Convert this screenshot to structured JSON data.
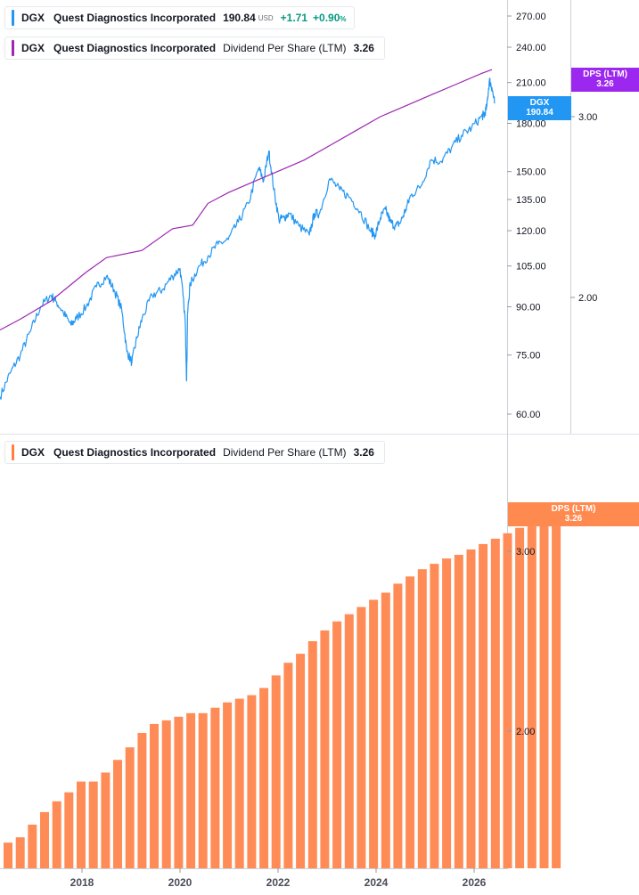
{
  "legends": {
    "price": {
      "ticker": "DGX",
      "name": "Quest Diagnostics Incorporated",
      "value": "190.84",
      "currency": "USD",
      "change": "+1.71",
      "change_pct": "+0.90",
      "pct_sign": "%",
      "color": "#2196f3"
    },
    "dps_top": {
      "ticker": "DGX",
      "name": "Quest Diagnostics Incorporated",
      "metric": "Dividend Per Share (LTM)",
      "value": "3.26",
      "color": "#9c27b0"
    },
    "dps_bottom": {
      "ticker": "DGX",
      "name": "Quest Diagnostics Incorporated",
      "metric": "Dividend Per Share (LTM)",
      "value": "3.26",
      "color": "#ff7f3f"
    }
  },
  "tags": {
    "price": {
      "label": "DGX",
      "value": "190.84",
      "color": "#2196f3"
    },
    "dps_top": {
      "label": "DPS (LTM)",
      "value": "3.26",
      "color": "#9c27ee"
    },
    "dps_bottom": {
      "label": "DPS (LTM)",
      "value": "3.26",
      "color": "#ff8a50"
    }
  },
  "chart_data": [
    {
      "type": "line",
      "title": "",
      "y_scale": "log",
      "ylim": [
        55,
        290
      ],
      "price_axis_ticks": [
        "270.00",
        "240.00",
        "210.00",
        "180.00",
        "150.00",
        "135.00",
        "120.00",
        "105.00",
        "90.00",
        "75.00",
        "60.00"
      ],
      "dps_axis_ticks": [
        "3.00",
        "2.00"
      ],
      "dps_axis_range": [
        1.9,
        3.4
      ],
      "x_range": [
        2016.5,
        2026.2
      ],
      "series": [
        {
          "name": "DGX",
          "color": "#2196f3",
          "x": [
            2016.5,
            2016.7,
            2016.9,
            2017.1,
            2017.3,
            2017.5,
            2017.6,
            2017.75,
            2017.9,
            2018.0,
            2018.2,
            2018.4,
            2018.6,
            2018.75,
            2018.9,
            2019.0,
            2019.1,
            2019.2,
            2019.3,
            2019.5,
            2019.7,
            2019.9,
            2020.05,
            2020.15,
            2020.18,
            2020.2,
            2020.25,
            2020.4,
            2020.6,
            2020.8,
            2021.0,
            2021.2,
            2021.4,
            2021.6,
            2021.7,
            2021.8,
            2021.9,
            2022.0,
            2022.1,
            2022.2,
            2022.4,
            2022.6,
            2022.7,
            2022.8,
            2023.0,
            2023.2,
            2023.4,
            2023.6,
            2023.8,
            2023.9,
            2024.0,
            2024.1,
            2024.2,
            2024.3,
            2024.4,
            2024.5,
            2024.6,
            2024.8,
            2025.0,
            2025.2,
            2025.4,
            2025.6,
            2025.8,
            2026.0,
            2026.05,
            2026.1,
            2026.15,
            2026.2,
            2026.25
          ],
          "values": [
            64,
            70,
            75,
            82,
            90,
            94,
            92,
            88,
            84,
            86,
            90,
            97,
            101,
            96,
            89,
            76,
            73,
            80,
            86,
            94,
            96,
            101,
            104,
            86,
            68,
            88,
            98,
            104,
            109,
            114,
            116,
            124,
            133,
            152,
            145,
            162,
            140,
            125,
            126,
            128,
            122,
            118,
            128,
            128,
            146,
            140,
            136,
            129,
            120,
            118,
            126,
            130,
            124,
            122,
            124,
            130,
            137,
            142,
            157,
            156,
            164,
            172,
            177,
            185,
            186,
            192,
            212,
            206,
            194
          ]
        },
        {
          "name": "DPS (LTM)",
          "color": "#9c27b0",
          "x": [
            2016.5,
            2016.9,
            2017.5,
            2018.2,
            2018.6,
            2019.3,
            2019.9,
            2020.3,
            2020.6,
            2021.0,
            2021.5,
            2022.0,
            2022.5,
            2023.0,
            2023.5,
            2024.0,
            2024.5,
            2025.0,
            2025.5,
            2026.0,
            2026.2
          ],
          "values": [
            1.82,
            1.88,
            1.98,
            2.14,
            2.22,
            2.26,
            2.38,
            2.4,
            2.52,
            2.58,
            2.64,
            2.7,
            2.76,
            2.84,
            2.92,
            3.0,
            3.06,
            3.12,
            3.18,
            3.24,
            3.26
          ]
        }
      ]
    },
    {
      "type": "bar",
      "title": "",
      "x_ticks": [
        "2018",
        "2020",
        "2022",
        "2024",
        "2026"
      ],
      "y_axis_ticks": [
        "3.00",
        "2.00"
      ],
      "ylim": [
        1.23,
        3.4
      ],
      "series": [
        {
          "name": "DPS (LTM)",
          "color": "#ff8c57",
          "values": [
            1.38,
            1.41,
            1.48,
            1.55,
            1.61,
            1.66,
            1.72,
            1.72,
            1.77,
            1.84,
            1.91,
            1.99,
            2.04,
            2.06,
            2.08,
            2.1,
            2.1,
            2.13,
            2.16,
            2.18,
            2.2,
            2.24,
            2.31,
            2.38,
            2.43,
            2.5,
            2.56,
            2.61,
            2.65,
            2.69,
            2.73,
            2.77,
            2.82,
            2.86,
            2.9,
            2.93,
            2.96,
            2.98,
            3.01,
            3.04,
            3.07,
            3.1,
            3.13,
            3.16,
            3.22,
            3.26
          ]
        }
      ]
    }
  ]
}
